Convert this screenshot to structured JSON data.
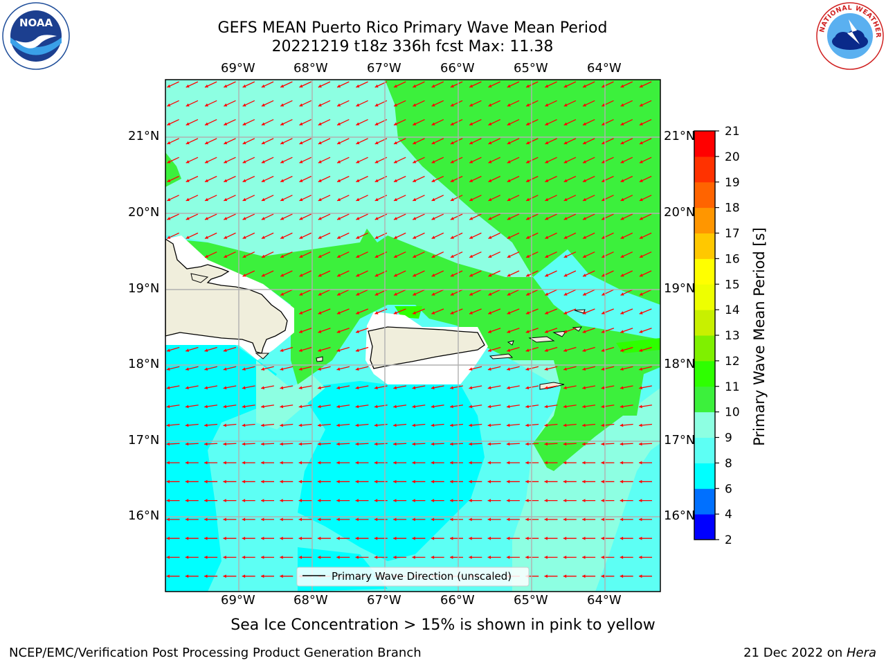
{
  "header": {
    "title_line1": "GEFS MEAN Puerto Rico Primary Wave Mean Period",
    "title_line2": "20221219 t18z 336h fcst   Max: 11.38"
  },
  "logos": {
    "left": {
      "name": "NOAA",
      "ring_text": "NATIONAL OCEANIC AND ATMOSPHERIC ADMINISTRATION · U.S. DEPARTMENT OF COMMERCE"
    },
    "right": {
      "name": "NATIONAL WEATHER SERVICE"
    }
  },
  "map": {
    "lon_ticks": [
      "69°W",
      "68°W",
      "67°W",
      "66°W",
      "65°W",
      "64°W"
    ],
    "lat_ticks": [
      "21°N",
      "20°N",
      "19°N",
      "18°N",
      "17°N",
      "16°N"
    ],
    "legend_label": "Primary Wave Direction (unscaled)",
    "arrow_color": "#ff0000",
    "land_color": "#f0eedc"
  },
  "colorbar": {
    "label": "Primary Wave Mean Period [s]",
    "ticks": [
      "2",
      "4",
      "6",
      "8",
      "9",
      "10",
      "11",
      "12",
      "13",
      "14",
      "15",
      "16",
      "17",
      "18",
      "19",
      "20",
      "21"
    ],
    "colors": [
      "#0000ff",
      "#0070ff",
      "#00ffff",
      "#5dfff4",
      "#8dffe2",
      "#3cf03c",
      "#2eff00",
      "#7ff000",
      "#c8f000",
      "#eeff00",
      "#ffff00",
      "#ffc800",
      "#ff9600",
      "#ff6400",
      "#ff3200",
      "#ff0000"
    ]
  },
  "caption": "Sea Ice Concentration > 15% is shown in pink to yellow",
  "footer": {
    "left": "NCEP/EMC/Verification Post Processing Product Generation Branch",
    "right_prefix": "21 Dec 2022 on ",
    "right_machine": "Hera"
  }
}
